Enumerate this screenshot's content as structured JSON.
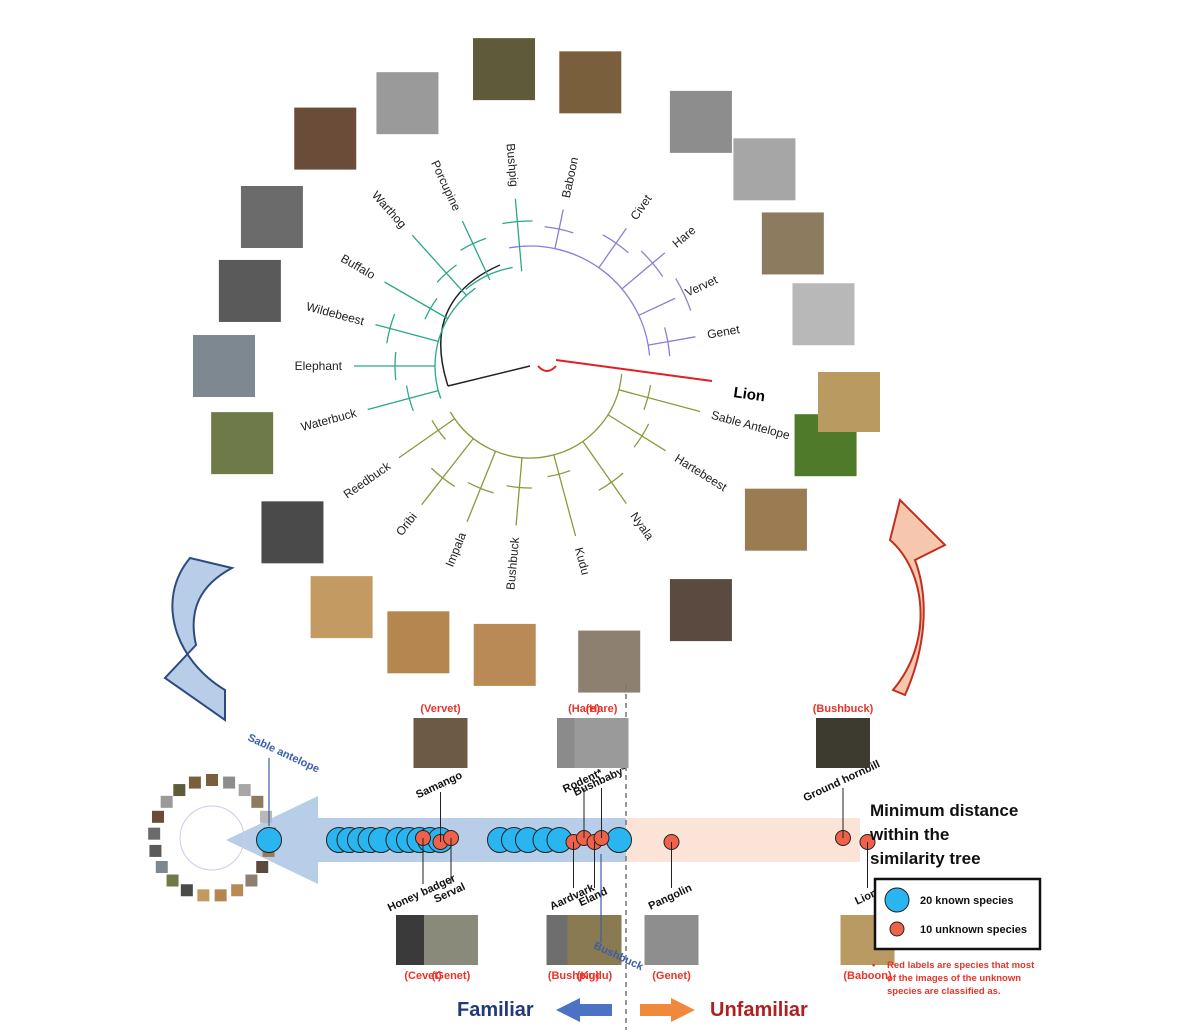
{
  "tree": {
    "species": [
      {
        "name": "Baboon",
        "group": "purple",
        "photo": "#7a5f3d"
      },
      {
        "name": "Civet",
        "group": "purple",
        "photo": "#8d8d8d"
      },
      {
        "name": "Hare",
        "group": "purple",
        "photo": "#a6a6a6"
      },
      {
        "name": "Vervet",
        "group": "purple",
        "photo": "#8c7b5e"
      },
      {
        "name": "Genet",
        "group": "purple",
        "photo": "#b8b8b8"
      },
      {
        "name": "Sable Antelope",
        "group": "olive",
        "photo": "#4f7a2a"
      },
      {
        "name": "Hartebeest",
        "group": "olive",
        "photo": "#9b7b52"
      },
      {
        "name": "Nyala",
        "group": "olive",
        "photo": "#5a4a3f"
      },
      {
        "name": "Kudu",
        "group": "olive",
        "photo": "#8d8070"
      },
      {
        "name": "Bushbuck",
        "group": "olive",
        "photo": "#b98a55"
      },
      {
        "name": "Impala",
        "group": "olive",
        "photo": "#b68650"
      },
      {
        "name": "Oribi",
        "group": "olive",
        "photo": "#c39a62"
      },
      {
        "name": "Reedbuck",
        "group": "olive",
        "photo": "#4a4a4a"
      },
      {
        "name": "Waterbuck",
        "group": "teal",
        "photo": "#6e7b48"
      },
      {
        "name": "Elephant",
        "group": "teal",
        "photo": "#7e8890"
      },
      {
        "name": "Wildebeest",
        "group": "teal",
        "photo": "#5a5a5a"
      },
      {
        "name": "Buffalo",
        "group": "teal",
        "photo": "#6b6b6b"
      },
      {
        "name": "Warthog",
        "group": "teal",
        "photo": "#6a4c38"
      },
      {
        "name": "Porcupine",
        "group": "teal",
        "photo": "#9a9a9a"
      },
      {
        "name": "Bushpig",
        "group": "teal",
        "photo": "#5e5a3a"
      }
    ],
    "lion_label": "Lion",
    "lion_photo": "#b99a60",
    "colors": {
      "purple": "#8a7fd8",
      "olive": "#8a9a3c",
      "teal": "#2aa88c",
      "red": "#e02020",
      "black": "#222222"
    }
  },
  "arrows": {
    "left_color": "#b8cde8",
    "right_color": "#f6c7ae"
  },
  "distance_axis": {
    "title_lines": [
      "Minimum distance",
      "within the",
      "similarity tree"
    ],
    "min": 0.0,
    "max": 1.0,
    "threshold": 0.53,
    "known_positions": [
      0.0,
      0.1,
      0.115,
      0.13,
      0.145,
      0.16,
      0.185,
      0.2,
      0.215,
      0.23,
      0.245,
      0.33,
      0.35,
      0.37,
      0.395,
      0.415,
      0.5
    ],
    "known": [
      {
        "label": "Sable antelope",
        "pos": 0.0
      },
      {
        "label": "Bushbuck",
        "pos": 0.5
      }
    ],
    "unknown": [
      {
        "label": "Honey badger",
        "classified_as": "(Cevet)",
        "pos": 0.22,
        "photo": "#3a3a3a",
        "side": "below"
      },
      {
        "label": "Samango",
        "classified_as": "(Vervet)",
        "pos": 0.245,
        "photo": "#6d5a44",
        "side": "above"
      },
      {
        "label": "Serval",
        "classified_as": "(Genet)",
        "pos": 0.26,
        "photo": "#8a8a7a",
        "side": "below"
      },
      {
        "label": "Aardvark",
        "classified_as": "(Bushpig)",
        "pos": 0.435,
        "photo": "#6e6e6e",
        "side": "below"
      },
      {
        "label": "Rodent*",
        "classified_as": "(Hare)",
        "pos": 0.45,
        "photo": "#8b8b8b",
        "side": "above"
      },
      {
        "label": "Eland",
        "classified_as": "(Kudu)",
        "pos": 0.465,
        "photo": "#8a7a52",
        "side": "below"
      },
      {
        "label": "Bushbaby*",
        "classified_as": "(Hare)",
        "pos": 0.475,
        "photo": "#9a9a9a",
        "side": "above"
      },
      {
        "label": "Pangolin",
        "classified_as": "(Genet)",
        "pos": 0.575,
        "photo": "#8e8e8e",
        "side": "below"
      },
      {
        "label": "Ground hornbill",
        "classified_as": "(Bushbuck)",
        "pos": 0.82,
        "photo": "#3d3a30",
        "side": "above"
      },
      {
        "label": "Lion",
        "classified_as": "(Baboon)",
        "pos": 0.855,
        "photo": "#b89a62",
        "side": "below"
      }
    ],
    "familiar": "Familiar",
    "unfamiliar": "Unfamiliar"
  },
  "legend": {
    "known": "20 known species",
    "unknown": "10 unknown species",
    "note_bullet": "•",
    "note_lines": [
      "Red labels are species that most",
      "of the images of the unknown",
      "species are classified as."
    ],
    "known_color": "#29b6f0",
    "unknown_color": "#f0614a"
  }
}
